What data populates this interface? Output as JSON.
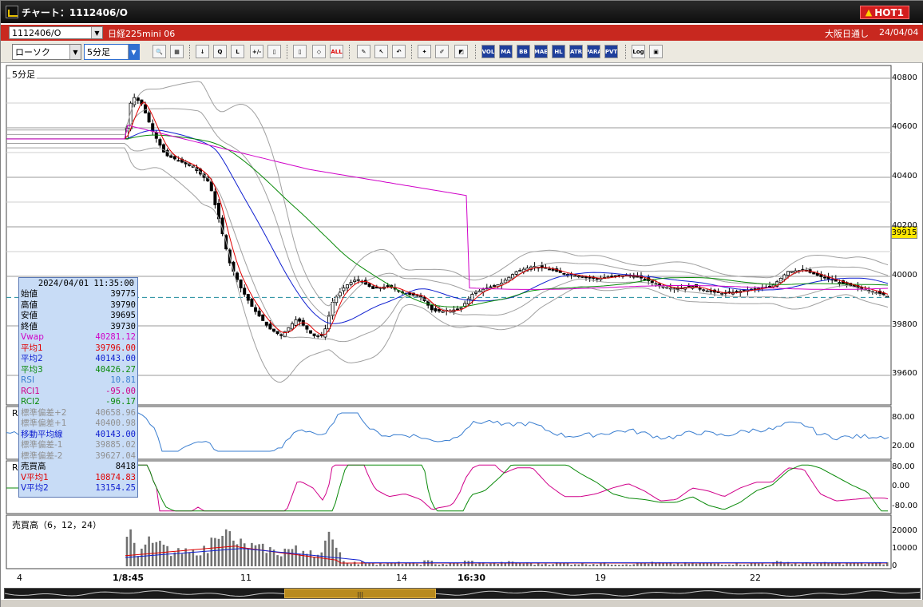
{
  "window": {
    "title": "チャート：1112406/O",
    "hot_label": "HOT1",
    "hot_icon": "warning-icon"
  },
  "instrument": {
    "symbol": "1112406/O",
    "name": "日経225mini 06",
    "session": "大阪日通し",
    "date": "24/04/04"
  },
  "toolbar": {
    "chart_type": "ローソク",
    "interval": "5分足",
    "buttons": [
      {
        "name": "zoom-icon",
        "label": "🔍"
      },
      {
        "name": "grid-icon",
        "label": "▦"
      },
      {
        "name": "candle-fall-icon",
        "label": "↓"
      },
      {
        "name": "trend-icon",
        "label": "Q"
      },
      {
        "name": "line-icon",
        "label": "L"
      },
      {
        "name": "bar-icon",
        "label": "+/-"
      },
      {
        "name": "split-icon",
        "label": "▯"
      },
      {
        "name": "candle-icon",
        "label": "▯"
      },
      {
        "name": "range-icon",
        "label": "◇"
      },
      {
        "name": "all-icon",
        "label": "ALL"
      },
      {
        "name": "pencil-icon",
        "label": "✎"
      },
      {
        "name": "cursor-icon",
        "label": "↖"
      },
      {
        "name": "eraser-icon",
        "label": "↶"
      },
      {
        "name": "settings-icon",
        "label": "✦"
      },
      {
        "name": "tools-icon",
        "label": "✐"
      },
      {
        "name": "color-icon",
        "label": "◩"
      },
      {
        "name": "volume-icon",
        "label": "VOL"
      },
      {
        "name": "ma-icon",
        "label": "MA"
      },
      {
        "name": "bb-icon",
        "label": "BB"
      },
      {
        "name": "mae-icon",
        "label": "MAE"
      },
      {
        "name": "hl-icon",
        "label": "HL"
      },
      {
        "name": "atr-icon",
        "label": "ATR"
      },
      {
        "name": "para-icon",
        "label": "PARA"
      },
      {
        "name": "pvt-icon",
        "label": "PVT"
      },
      {
        "name": "log-icon",
        "label": "Log"
      },
      {
        "name": "export-icon",
        "label": "▣"
      }
    ]
  },
  "chart": {
    "main_label": "5分足",
    "rsi_label": "RS",
    "rci_label": "RC",
    "volume_label": "売買高（6，12，24）",
    "last_price": "39915",
    "price_ticks": [
      "40800",
      "40600",
      "40400",
      "40200",
      "40000",
      "39800",
      "39600"
    ],
    "rsi_ticks": [
      "80.00",
      "20.00"
    ],
    "rci_ticks": [
      "80.00",
      "0.00",
      "-80.00"
    ],
    "volume_ticks": [
      "20000",
      "10000",
      "0"
    ],
    "x_ticks": [
      {
        "label": "4",
        "bold": false
      },
      {
        "label": "1/8:45",
        "bold": true
      },
      {
        "label": "11",
        "bold": false
      },
      {
        "label": "14",
        "bold": false
      },
      {
        "label": "16:30",
        "bold": true
      },
      {
        "label": "19",
        "bold": false
      },
      {
        "label": "22",
        "bold": false
      }
    ],
    "colors": {
      "vwap": "#d000c8",
      "ma1": "#e00000",
      "ma2": "#1020d0",
      "ma3": "#0a8a0a",
      "bollinger": "#a0a0a0",
      "rsi": "#3a7ed0",
      "rci1": "#d0008a",
      "rci2": "#0a8a0a",
      "volume": "#707070"
    }
  },
  "info_panel": {
    "datetime": "2024/04/01  11:35:00",
    "rows": [
      {
        "key": "始値",
        "value": "39775",
        "color": "#000000"
      },
      {
        "key": "高値",
        "value": "39790",
        "color": "#000000"
      },
      {
        "key": "安値",
        "value": "39695",
        "color": "#000000"
      },
      {
        "key": "終値",
        "value": "39730",
        "color": "#000000"
      },
      {
        "key": "Vwap",
        "value": "40281.12",
        "color": "#d000c8"
      },
      {
        "key": "平均1",
        "value": "39796.00",
        "color": "#e00000"
      },
      {
        "key": "平均2",
        "value": "40143.00",
        "color": "#1020d0"
      },
      {
        "key": "平均3",
        "value": "40426.27",
        "color": "#0a8a0a"
      },
      {
        "key": "RSI",
        "value": "10.81",
        "color": "#3a7ed0"
      },
      {
        "key": "RCI1",
        "value": "-95.00",
        "color": "#d0008a"
      },
      {
        "key": "RCI2",
        "value": "-96.17",
        "color": "#0a8a0a"
      },
      {
        "key": "標準偏差+2",
        "value": "40658.96",
        "color": "#909090"
      },
      {
        "key": "標準偏差+1",
        "value": "40400.98",
        "color": "#909090"
      },
      {
        "key": "移動平均線",
        "value": "40143.00",
        "color": "#1020d0"
      },
      {
        "key": "標準偏差-1",
        "value": "39885.02",
        "color": "#909090"
      },
      {
        "key": "標準偏差-2",
        "value": "39627.04",
        "color": "#909090"
      },
      {
        "key": "売買高",
        "value": "8418",
        "color": "#000000"
      },
      {
        "key": "V平均1",
        "value": "10874.83",
        "color": "#e00000"
      },
      {
        "key": "V平均2",
        "value": "13154.25",
        "color": "#1020d0"
      }
    ]
  }
}
